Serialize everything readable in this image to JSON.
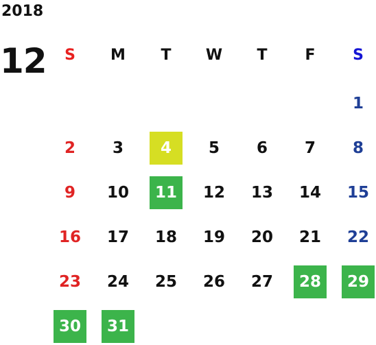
{
  "year": "2018",
  "month": "12",
  "weekdays": [
    "S",
    "M",
    "T",
    "W",
    "T",
    "F",
    "S"
  ],
  "weekday_colors": [
    "#e8201f",
    "#111111",
    "#111111",
    "#111111",
    "#111111",
    "#111111",
    "#1414d4"
  ],
  "day_colors": [
    "#e02424",
    "#111111",
    "#111111",
    "#111111",
    "#111111",
    "#111111",
    "#1f3f96"
  ],
  "highlight_text_color": "#ffffff",
  "weeks": [
    [
      null,
      null,
      null,
      null,
      null,
      null,
      {
        "day": 1
      }
    ],
    [
      {
        "day": 2
      },
      {
        "day": 3
      },
      {
        "day": 4,
        "fill": "#d6de23"
      },
      {
        "day": 5
      },
      {
        "day": 6
      },
      {
        "day": 7
      },
      {
        "day": 8
      }
    ],
    [
      {
        "day": 9
      },
      {
        "day": 10
      },
      {
        "day": 11,
        "fill": "#3cb44b"
      },
      {
        "day": 12
      },
      {
        "day": 13
      },
      {
        "day": 14
      },
      {
        "day": 15
      }
    ],
    [
      {
        "day": 16
      },
      {
        "day": 17
      },
      {
        "day": 18
      },
      {
        "day": 19
      },
      {
        "day": 20
      },
      {
        "day": 21
      },
      {
        "day": 22
      }
    ],
    [
      {
        "day": 23
      },
      {
        "day": 24
      },
      {
        "day": 25
      },
      {
        "day": 26
      },
      {
        "day": 27
      },
      {
        "day": 28,
        "fill": "#3cb44b"
      },
      {
        "day": 29,
        "fill": "#3cb44b"
      }
    ],
    [
      {
        "day": 30,
        "fill": "#3cb44b"
      },
      {
        "day": 31,
        "fill": "#3cb44b"
      },
      null,
      null,
      null,
      null,
      null
    ]
  ]
}
